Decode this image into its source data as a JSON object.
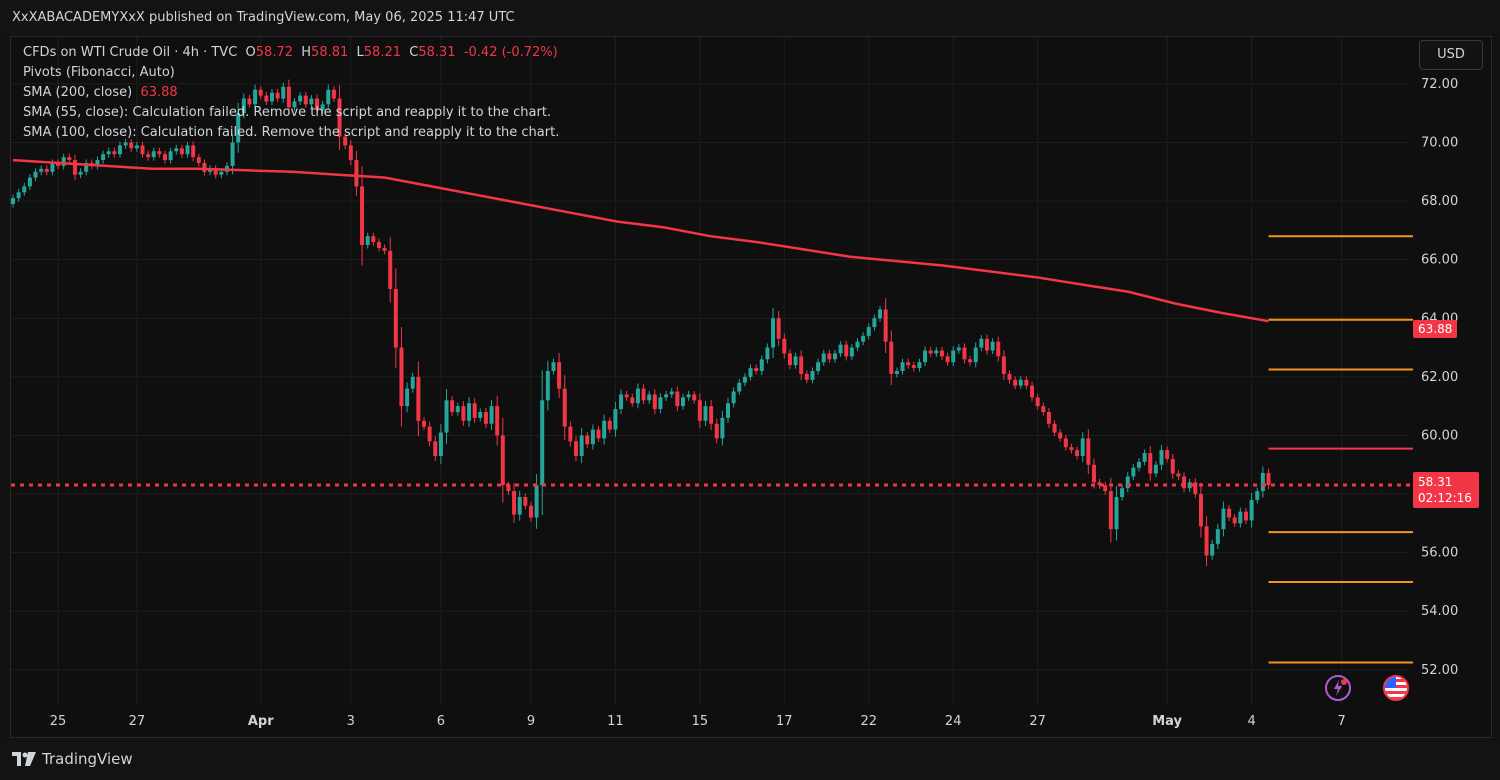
{
  "header": {
    "publish_line": "XxXABACADEMYXxX published on TradingView.com, May 06, 2025 11:47 UTC"
  },
  "legend": {
    "symbol": "CFDs on WTI Crude Oil · 4h · TVC",
    "o_label": "O",
    "o_value": "58.72",
    "h_label": "H",
    "h_value": "58.81",
    "l_label": "L",
    "l_value": "58.21",
    "c_label": "C",
    "c_value": "58.31",
    "change": "-0.42 (-0.72%)",
    "pivots": "Pivots (Fibonacci, Auto)",
    "sma200_label": "SMA (200, close)",
    "sma200_value": "63.88",
    "sma55_msg": "SMA (55, close): Calculation failed. Remove the script and reapply it to the chart.",
    "sma100_msg": "SMA (100, close): Calculation failed. Remove the script and reapply it to the chart."
  },
  "currency": "USD",
  "tags": {
    "sma_value": "63.88",
    "last_price": "58.31",
    "countdown": "02:12:16"
  },
  "footer": {
    "brand": "TradingView"
  },
  "colors": {
    "up": "#26a69a",
    "down": "#f23645",
    "sma": "#f23645",
    "pivot": "#f7931a",
    "grid": "#1e1e1e",
    "text": "#d1d4dc"
  },
  "chart_data": {
    "type": "candlestick",
    "title": "CFDs on WTI Crude Oil · 4h · TVC",
    "ylim": [
      50.8,
      73.6
    ],
    "y_ticks": [
      "72.00",
      "70.00",
      "68.00",
      "66.00",
      "64.00",
      "62.00",
      "60.00",
      "58.00",
      "56.00",
      "54.00",
      "52.00"
    ],
    "y_tick_values": [
      72,
      70,
      68,
      66,
      64,
      62,
      60,
      58,
      56,
      54,
      52
    ],
    "x_ticks": [
      {
        "label": "25",
        "bar": 8,
        "bold": false
      },
      {
        "label": "27",
        "bar": 22,
        "bold": false
      },
      {
        "label": "Apr",
        "bar": 44,
        "bold": true
      },
      {
        "label": "3",
        "bar": 60,
        "bold": false
      },
      {
        "label": "6",
        "bar": 76,
        "bold": false
      },
      {
        "label": "9",
        "bar": 92,
        "bold": false
      },
      {
        "label": "11",
        "bar": 107,
        "bold": false
      },
      {
        "label": "15",
        "bar": 122,
        "bold": false
      },
      {
        "label": "17",
        "bar": 137,
        "bold": false
      },
      {
        "label": "22",
        "bar": 152,
        "bold": false
      },
      {
        "label": "24",
        "bar": 167,
        "bold": false
      },
      {
        "label": "27",
        "bar": 182,
        "bold": false
      },
      {
        "label": "May",
        "bar": 205,
        "bold": true
      },
      {
        "label": "4",
        "bar": 220,
        "bold": false
      },
      {
        "label": "7",
        "bar": 236,
        "bold": false
      }
    ],
    "close": [
      68.1,
      68.3,
      68.5,
      68.8,
      69.0,
      69.1,
      69.0,
      69.3,
      69.2,
      69.5,
      69.4,
      68.9,
      69.0,
      69.3,
      69.2,
      69.4,
      69.6,
      69.7,
      69.6,
      69.9,
      70.0,
      69.8,
      69.9,
      69.6,
      69.5,
      69.7,
      69.6,
      69.4,
      69.7,
      69.8,
      69.6,
      69.9,
      69.5,
      69.3,
      69.0,
      69.1,
      68.9,
      69.0,
      69.2,
      70.0,
      71.0,
      71.5,
      71.3,
      71.8,
      71.6,
      71.4,
      71.7,
      71.5,
      71.9,
      71.2,
      71.4,
      71.6,
      71.3,
      71.5,
      71.1,
      71.3,
      71.8,
      71.5,
      70.2,
      69.9,
      69.4,
      68.5,
      66.5,
      66.8,
      66.6,
      66.4,
      66.3,
      65.0,
      63.0,
      61.0,
      61.6,
      62.0,
      60.5,
      60.3,
      59.8,
      59.3,
      60.1,
      61.2,
      60.8,
      61.0,
      60.5,
      61.1,
      60.6,
      60.8,
      60.4,
      61.0,
      60.0,
      58.3,
      58.1,
      57.3,
      57.9,
      57.6,
      57.2,
      58.3,
      61.2,
      62.2,
      62.5,
      61.6,
      60.3,
      59.8,
      59.3,
      60.0,
      59.7,
      60.2,
      59.9,
      60.5,
      60.2,
      60.9,
      61.4,
      61.3,
      61.1,
      61.6,
      61.2,
      61.4,
      60.9,
      61.3,
      61.4,
      61.5,
      61.0,
      61.3,
      61.4,
      61.2,
      60.5,
      61.0,
      60.4,
      59.9,
      60.6,
      61.1,
      61.5,
      61.8,
      62.0,
      62.3,
      62.2,
      62.6,
      63.0,
      64.0,
      63.3,
      62.8,
      62.4,
      62.7,
      62.1,
      61.9,
      62.2,
      62.5,
      62.8,
      62.6,
      62.8,
      63.1,
      62.7,
      63.0,
      63.2,
      63.4,
      63.7,
      64.0,
      64.3,
      63.2,
      62.1,
      62.2,
      62.5,
      62.4,
      62.3,
      62.5,
      62.9,
      62.8,
      62.9,
      62.7,
      62.5,
      62.9,
      63.0,
      62.6,
      62.5,
      63.0,
      63.3,
      62.9,
      63.2,
      62.7,
      62.1,
      61.9,
      61.7,
      61.9,
      61.7,
      61.3,
      61.0,
      60.8,
      60.4,
      60.1,
      59.9,
      59.6,
      59.5,
      59.3,
      59.9,
      59.0,
      58.4,
      58.3,
      58.1,
      56.8,
      57.9,
      58.2,
      58.6,
      58.9,
      59.1,
      59.4,
      58.7,
      59.0,
      59.5,
      59.2,
      58.7,
      58.6,
      58.2,
      58.4,
      58.0,
      56.9,
      55.9,
      56.3,
      56.8,
      57.5,
      57.2,
      57.0,
      57.4,
      57.1,
      57.8,
      58.1,
      58.72,
      58.31
    ],
    "sma200": [
      69.4,
      69.3,
      69.2,
      69.1,
      69.1,
      69.05,
      69.0,
      68.9,
      68.8,
      68.5,
      68.2,
      67.9,
      67.6,
      67.3,
      67.1,
      66.8,
      66.6,
      66.35,
      66.1,
      65.95,
      65.8,
      65.6,
      65.4,
      65.15,
      64.9,
      64.5,
      64.18,
      63.9
    ],
    "pivots": [
      {
        "level": 66.8,
        "color": "#f7931a"
      },
      {
        "level": 63.95,
        "color": "#f7931a"
      },
      {
        "level": 62.25,
        "color": "#f7931a"
      },
      {
        "level": 59.55,
        "color": "#f23645"
      },
      {
        "level": 56.7,
        "color": "#f7931a"
      },
      {
        "level": 55.0,
        "color": "#f7931a"
      },
      {
        "level": 52.25,
        "color": "#f7931a"
      }
    ],
    "last_price": 58.31
  }
}
